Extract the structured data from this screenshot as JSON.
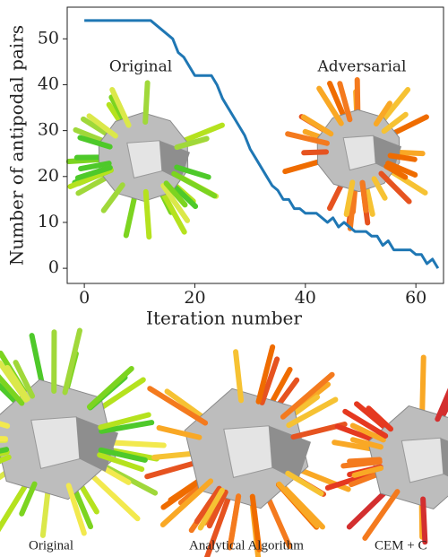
{
  "chart_data": {
    "type": "line",
    "xlabel": "Iteration number",
    "ylabel": "Number of antipodal pairs",
    "annotations": [
      "Original",
      "Adversarial"
    ],
    "captions": [
      "Original",
      "Analytical Algorithm",
      "CEM + C"
    ],
    "x": [
      0,
      1,
      2,
      3,
      4,
      5,
      6,
      7,
      8,
      9,
      10,
      11,
      12,
      13,
      14,
      15,
      16,
      17,
      18,
      19,
      20,
      21,
      22,
      23,
      24,
      25,
      26,
      27,
      28,
      29,
      30,
      31,
      32,
      33,
      34,
      35,
      36,
      37,
      38,
      39,
      40,
      41,
      42,
      43,
      44,
      45,
      46,
      47,
      48,
      49,
      50,
      51,
      52,
      53,
      54,
      55,
      56,
      57,
      58,
      59,
      60,
      61,
      62,
      63,
      64
    ],
    "series": [
      {
        "color": "#1f77b4",
        "values": [
          54,
          54,
          54,
          54,
          54,
          54,
          54,
          54,
          54,
          54,
          54,
          54,
          54,
          53,
          52,
          51,
          50,
          47,
          46,
          44,
          42,
          42,
          42,
          42,
          40,
          37,
          35,
          33,
          31,
          29,
          26,
          24,
          22,
          20,
          18,
          17,
          15,
          15,
          13,
          13,
          12,
          12,
          12,
          11,
          10,
          11,
          9,
          10,
          9,
          8,
          8,
          8,
          7,
          7,
          5,
          6,
          4,
          4,
          4,
          4,
          3,
          3,
          1,
          2,
          0
        ]
      }
    ],
    "xlim": [
      -3.1,
      65
    ],
    "ylim": [
      -3.3,
      56.9
    ],
    "xticks": [
      0,
      20,
      40,
      60
    ],
    "yticks": [
      0,
      10,
      20,
      30,
      40,
      50
    ]
  }
}
